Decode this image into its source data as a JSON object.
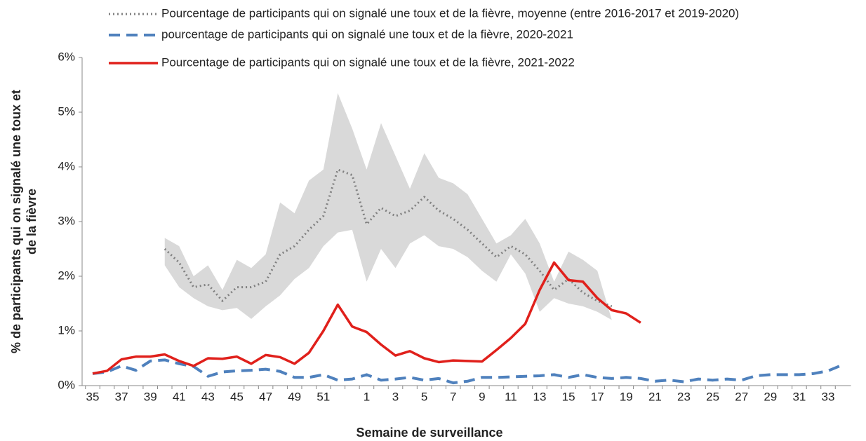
{
  "chart_data": {
    "type": "line",
    "x_label": "Semaine de surveillance",
    "y_label": [
      "% de participants qui on signalé une toux et",
      "de la fièvre"
    ],
    "categories": [
      "35",
      null,
      "37",
      null,
      "39",
      null,
      "41",
      null,
      "43",
      null,
      "45",
      null,
      "47",
      null,
      "49",
      null,
      "51",
      null,
      null,
      "1",
      null,
      "3",
      null,
      "5",
      null,
      "7",
      null,
      "9",
      null,
      "11",
      null,
      "13",
      null,
      "15",
      null,
      "17",
      null,
      "19",
      null,
      "21",
      null,
      "23",
      null,
      "25",
      null,
      "27",
      null,
      "29",
      null,
      "31",
      null,
      "33",
      null
    ],
    "ylim": [
      0,
      6
    ],
    "yticks": [
      {
        "value": 0,
        "label": "0%"
      },
      {
        "value": 1,
        "label": "1%"
      },
      {
        "value": 2,
        "label": "2%"
      },
      {
        "value": 3,
        "label": "3%"
      },
      {
        "value": 4,
        "label": "4%"
      },
      {
        "value": 5,
        "label": "5%"
      },
      {
        "value": 6,
        "label": "6%"
      }
    ],
    "band": {
      "color": "#d9d9d9",
      "high": [
        null,
        null,
        null,
        null,
        null,
        2.7,
        2.55,
        2.0,
        2.2,
        1.75,
        2.3,
        2.15,
        2.4,
        3.35,
        3.15,
        3.75,
        3.95,
        5.35,
        4.7,
        3.95,
        4.8,
        4.2,
        3.6,
        4.25,
        3.8,
        3.7,
        3.5,
        3.05,
        2.6,
        2.75,
        3.05,
        2.6,
        1.9,
        2.45,
        2.3,
        2.1,
        1.2,
        null,
        null,
        null,
        null,
        null,
        null,
        null,
        null,
        null,
        null,
        null,
        null,
        null,
        null,
        null,
        null
      ],
      "low": [
        null,
        null,
        null,
        null,
        null,
        2.2,
        1.8,
        1.6,
        1.45,
        1.38,
        1.42,
        1.22,
        1.45,
        1.65,
        1.95,
        2.15,
        2.55,
        2.8,
        2.85,
        1.9,
        2.5,
        2.15,
        2.6,
        2.75,
        2.55,
        2.5,
        2.35,
        2.1,
        1.9,
        2.4,
        2.05,
        1.35,
        1.6,
        1.5,
        1.45,
        1.35,
        1.2,
        null,
        null,
        null,
        null,
        null,
        null,
        null,
        null,
        null,
        null,
        null,
        null,
        null,
        null,
        null,
        null
      ]
    },
    "series": [
      {
        "name": "Pourcentage de participants qui on signalé une toux et de la fièvre, moyenne (entre 2016-2017 et 2019-2020)",
        "color": "#808080",
        "style": "dotted",
        "values": [
          null,
          null,
          null,
          null,
          null,
          2.5,
          2.25,
          1.8,
          1.85,
          1.55,
          1.8,
          1.8,
          1.9,
          2.4,
          2.55,
          2.85,
          3.1,
          3.95,
          3.85,
          2.95,
          3.25,
          3.1,
          3.2,
          3.45,
          3.2,
          3.05,
          2.85,
          2.6,
          2.35,
          2.55,
          2.4,
          2.1,
          1.75,
          1.95,
          1.7,
          1.55,
          1.45,
          null,
          null,
          null,
          null,
          null,
          null,
          null,
          null,
          null,
          null,
          null,
          null,
          null,
          null,
          null,
          null
        ]
      },
      {
        "name": "pourcentage de participants qui on signalé une toux et de la fièvre, 2020-2021",
        "color": "#4f81bd",
        "style": "dashed",
        "values": [
          0.22,
          0.25,
          0.36,
          0.28,
          0.45,
          0.47,
          0.4,
          0.35,
          0.17,
          0.25,
          0.27,
          0.28,
          0.3,
          0.26,
          0.15,
          0.15,
          0.2,
          0.1,
          0.12,
          0.2,
          0.1,
          0.12,
          0.15,
          0.1,
          0.13,
          0.05,
          0.08,
          0.15,
          0.15,
          0.16,
          0.17,
          0.18,
          0.2,
          0.15,
          0.2,
          0.15,
          0.13,
          0.15,
          0.13,
          0.08,
          0.1,
          0.07,
          0.12,
          0.1,
          0.12,
          0.1,
          0.18,
          0.2,
          0.2,
          0.2,
          0.22,
          0.27,
          0.38
        ]
      },
      {
        "name": "Pourcentage de participants qui on signalé une toux et de la fièvre, 2021-2022",
        "color": "#e0201b",
        "style": "solid",
        "values": [
          0.22,
          0.27,
          0.48,
          0.53,
          0.53,
          0.57,
          0.45,
          0.36,
          0.5,
          0.49,
          0.53,
          0.4,
          0.56,
          0.52,
          0.4,
          0.6,
          1.0,
          1.48,
          1.08,
          0.98,
          0.75,
          0.55,
          0.63,
          0.5,
          0.43,
          0.46,
          0.45,
          0.44,
          0.65,
          0.87,
          1.13,
          1.75,
          2.25,
          1.93,
          1.9,
          1.6,
          1.38,
          1.32,
          1.15,
          null,
          null,
          null,
          null,
          null,
          null,
          null,
          null,
          null,
          null,
          null,
          null,
          null,
          null
        ]
      }
    ]
  }
}
